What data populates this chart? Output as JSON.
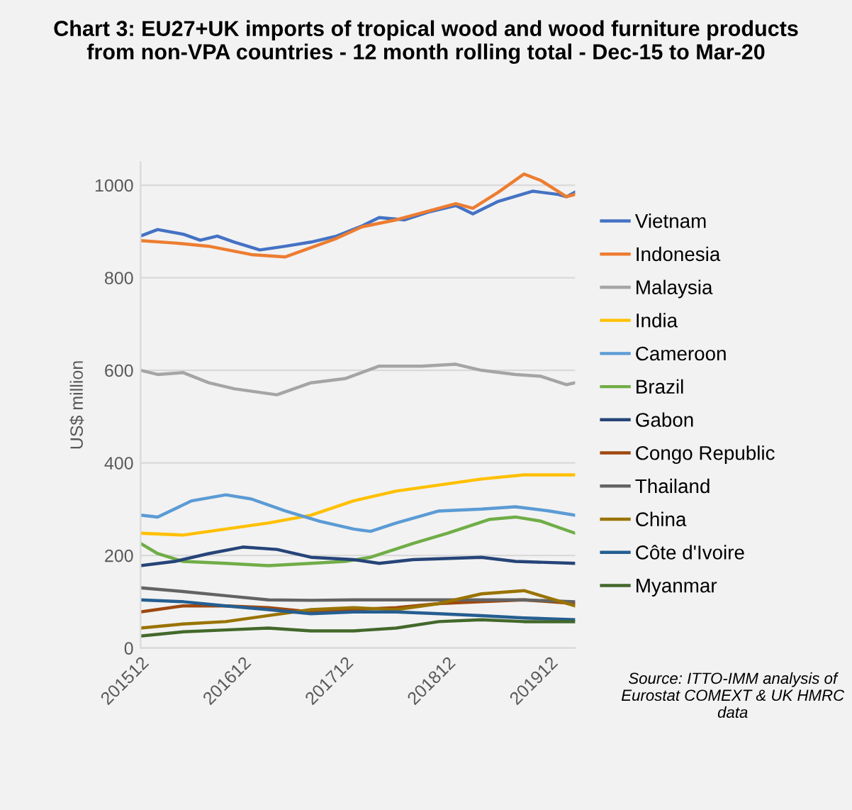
{
  "chart_data": {
    "type": "line",
    "title": "Chart 3: EU27+UK imports of tropical wood and wood furniture products from non-VPA countries - 12 month rolling total - Dec-15 to Mar-20",
    "ylabel": "US$ million",
    "annotations": [
      "Source: ITTO-IMM analysis of Eurostat COMEXT & UK HMRC data"
    ],
    "x": [
      "2015-12",
      "2016-05",
      "2016-10",
      "2017-03",
      "2017-08",
      "2018-01",
      "2018-06",
      "2018-11",
      "2019-04",
      "2019-09",
      "2020-03"
    ],
    "xlim": [
      "2015-12",
      "2020-03"
    ],
    "xticks": [
      {
        "value": "2015-12",
        "label": "201512"
      },
      {
        "value": "2016-12",
        "label": "201612"
      },
      {
        "value": "2017-12",
        "label": "201712"
      },
      {
        "value": "2018-12",
        "label": "201812"
      },
      {
        "value": "2019-12",
        "label": "201912"
      }
    ],
    "ylim": [
      0,
      1050
    ],
    "yticks": [
      0,
      200,
      400,
      600,
      800,
      1000
    ],
    "grid": "y",
    "legend": "right",
    "marker": "none",
    "line_style": "solid",
    "series": [
      {
        "name": "Vietnam",
        "color": "#4472c4",
        "x": [
          "2015-12",
          "2016-02",
          "2016-05",
          "2016-07",
          "2016-09",
          "2016-11",
          "2017-02",
          "2017-05",
          "2017-08",
          "2017-11",
          "2018-02",
          "2018-04",
          "2018-07",
          "2018-10",
          "2019-01",
          "2019-03",
          "2019-06",
          "2019-10",
          "2020-01",
          "2020-02",
          "2020-03"
        ],
        "values": [
          890,
          904,
          894,
          881,
          890,
          877,
          860,
          868,
          877,
          890,
          912,
          930,
          925,
          943,
          956,
          938,
          965,
          987,
          980,
          975,
          985
        ]
      },
      {
        "name": "Indonesia",
        "color": "#ed7d31",
        "x": [
          "2015-12",
          "2016-04",
          "2016-08",
          "2017-01",
          "2017-05",
          "2017-08",
          "2017-11",
          "2018-02",
          "2018-06",
          "2018-10",
          "2019-01",
          "2019-03",
          "2019-06",
          "2019-09",
          "2019-11",
          "2020-02",
          "2020-03"
        ],
        "values": [
          880,
          875,
          868,
          850,
          845,
          865,
          885,
          910,
          925,
          945,
          960,
          950,
          985,
          1024,
          1010,
          975,
          980
        ]
      },
      {
        "name": "Malaysia",
        "color": "#a5a5a5",
        "x": [
          "2015-12",
          "2016-02",
          "2016-05",
          "2016-08",
          "2016-11",
          "2017-04",
          "2017-08",
          "2017-12",
          "2018-04",
          "2018-09",
          "2019-01",
          "2019-04",
          "2019-08",
          "2019-11",
          "2020-02",
          "2020-03"
        ],
        "values": [
          600,
          591,
          595,
          573,
          560,
          547,
          573,
          582,
          609,
          609,
          613,
          600,
          591,
          587,
          569,
          573
        ]
      },
      {
        "name": "India",
        "color": "#ffc000",
        "values": [
          248,
          244,
          257,
          270,
          287,
          318,
          339,
          352,
          365,
          374,
          374
        ]
      },
      {
        "name": "Cameroon",
        "color": "#5b9bd5",
        "x": [
          "2015-12",
          "2016-02",
          "2016-06",
          "2016-10",
          "2017-01",
          "2017-05",
          "2017-09",
          "2018-01",
          "2018-03",
          "2018-06",
          "2018-11",
          "2019-04",
          "2019-08",
          "2019-12",
          "2020-03"
        ],
        "values": [
          287,
          283,
          318,
          331,
          322,
          296,
          274,
          257,
          252,
          270,
          296,
          300,
          305,
          296,
          287
        ]
      },
      {
        "name": "Brazil",
        "color": "#70ad47",
        "x": [
          "2015-12",
          "2016-02",
          "2016-05",
          "2016-10",
          "2017-03",
          "2017-08",
          "2017-12",
          "2018-03",
          "2018-08",
          "2018-12",
          "2019-05",
          "2019-08",
          "2019-11",
          "2020-03"
        ],
        "values": [
          226,
          204,
          187,
          183,
          178,
          183,
          187,
          196,
          226,
          248,
          278,
          283,
          274,
          248
        ]
      },
      {
        "name": "Gabon",
        "color": "#264478",
        "x": [
          "2015-12",
          "2016-04",
          "2016-08",
          "2016-12",
          "2017-04",
          "2017-08",
          "2018-01",
          "2018-04",
          "2018-08",
          "2019-04",
          "2019-08",
          "2020-03"
        ],
        "values": [
          178,
          187,
          204,
          218,
          213,
          196,
          191,
          183,
          191,
          196,
          187,
          183
        ]
      },
      {
        "name": "Congo Republic",
        "color": "#9e480e",
        "values": [
          78,
          91,
          91,
          87,
          78,
          83,
          87,
          96,
          100,
          104,
          96
        ]
      },
      {
        "name": "Thailand",
        "color": "#636363",
        "values": [
          130,
          122,
          113,
          104,
          103,
          104,
          104,
          104,
          104,
          104,
          100
        ]
      },
      {
        "name": "China",
        "color": "#997300",
        "values": [
          43,
          52,
          57,
          70,
          83,
          87,
          83,
          96,
          117,
          124,
          91
        ]
      },
      {
        "name": "Côte d'Ivoire",
        "color": "#255e91",
        "values": [
          104,
          100,
          91,
          83,
          74,
          78,
          78,
          74,
          70,
          65,
          61
        ]
      },
      {
        "name": "Myanmar",
        "color": "#43682b",
        "values": [
          26,
          35,
          39,
          43,
          37,
          37,
          43,
          57,
          61,
          57,
          57
        ]
      }
    ]
  }
}
